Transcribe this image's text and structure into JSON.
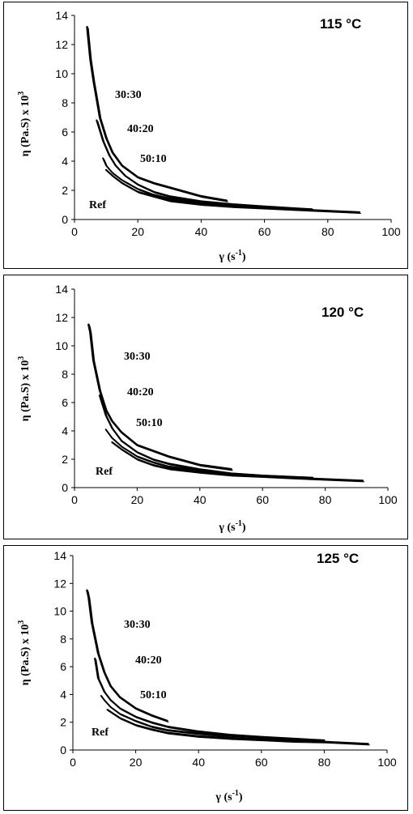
{
  "chart_data": [
    {
      "type": "line",
      "title": "115 °C",
      "xlabel": "γ (s-1)",
      "ylabel": "η (Pa.S) x 103",
      "xlim": [
        0,
        100
      ],
      "ylim": [
        0,
        14
      ],
      "xticks": [
        "0",
        "20",
        "40",
        "60",
        "80",
        "100"
      ],
      "yticks": [
        "0",
        "2",
        "4",
        "6",
        "8",
        "10",
        "12",
        "14"
      ],
      "annotations": [
        "30:30",
        "40:20",
        "50:10",
        "Ref"
      ],
      "series": [
        {
          "name": "30:30",
          "x": [
            4,
            5,
            6,
            8,
            10,
            12,
            15,
            20,
            25,
            30,
            40,
            48
          ],
          "y": [
            13.2,
            11.0,
            9.5,
            7.0,
            5.6,
            4.6,
            3.7,
            2.9,
            2.5,
            2.2,
            1.6,
            1.3
          ]
        },
        {
          "name": "40:20",
          "x": [
            7,
            9,
            11,
            13,
            16,
            20,
            25,
            30,
            40,
            50,
            60,
            75
          ],
          "y": [
            6.8,
            5.4,
            4.4,
            3.7,
            3.0,
            2.4,
            1.9,
            1.6,
            1.25,
            1.05,
            0.9,
            0.7
          ]
        },
        {
          "name": "50:10",
          "x": [
            9,
            10,
            12,
            15,
            20,
            25,
            30,
            40,
            50,
            60,
            75
          ],
          "y": [
            4.2,
            3.7,
            3.2,
            2.7,
            2.1,
            1.7,
            1.45,
            1.15,
            0.95,
            0.85,
            0.7
          ]
        },
        {
          "name": "Ref",
          "x": [
            10,
            12,
            15,
            20,
            25,
            30,
            40,
            50,
            60,
            70,
            80,
            90
          ],
          "y": [
            3.4,
            3.0,
            2.5,
            1.9,
            1.6,
            1.3,
            1.05,
            0.9,
            0.8,
            0.7,
            0.6,
            0.5
          ]
        }
      ]
    },
    {
      "type": "line",
      "title": "120 °C",
      "xlabel": "γ (s-1)",
      "ylabel": "η (Pa.S) x 103",
      "xlim": [
        0,
        100
      ],
      "ylim": [
        0,
        14
      ],
      "xticks": [
        "0",
        "20",
        "40",
        "60",
        "80",
        "100"
      ],
      "yticks": [
        "0",
        "2",
        "4",
        "6",
        "8",
        "10",
        "12",
        "14"
      ],
      "annotations": [
        "30:30",
        "40:20",
        "50:10",
        "Ref"
      ],
      "series": [
        {
          "name": "30:30",
          "x": [
            4.5,
            5,
            6,
            8,
            10,
            12,
            15,
            20,
            25,
            30,
            40,
            50
          ],
          "y": [
            11.5,
            11.0,
            9.0,
            6.9,
            5.5,
            4.7,
            3.9,
            3.0,
            2.6,
            2.2,
            1.6,
            1.3
          ]
        },
        {
          "name": "40:20",
          "x": [
            8,
            10,
            12,
            15,
            20,
            25,
            30,
            40,
            50,
            60,
            76
          ],
          "y": [
            6.5,
            5.1,
            4.2,
            3.3,
            2.5,
            2.0,
            1.7,
            1.3,
            1.0,
            0.85,
            0.7
          ]
        },
        {
          "name": "50:10",
          "x": [
            10,
            12,
            15,
            20,
            25,
            30,
            40,
            50,
            60,
            70,
            76
          ],
          "y": [
            4.1,
            3.5,
            2.9,
            2.2,
            1.8,
            1.5,
            1.2,
            1.0,
            0.85,
            0.75,
            0.7
          ]
        },
        {
          "name": "Ref",
          "x": [
            12,
            15,
            20,
            25,
            30,
            40,
            50,
            60,
            70,
            80,
            92
          ],
          "y": [
            3.2,
            2.7,
            2.0,
            1.6,
            1.35,
            1.1,
            0.9,
            0.8,
            0.7,
            0.6,
            0.5
          ]
        }
      ]
    },
    {
      "type": "line",
      "title": "125 °C",
      "xlabel": "γ (s-1)",
      "ylabel": "η (Pa.S) x 103",
      "xlim": [
        0,
        100
      ],
      "ylim": [
        0,
        14
      ],
      "xticks": [
        "0",
        "20",
        "40",
        "60",
        "80",
        "100"
      ],
      "yticks": [
        "0",
        "2",
        "4",
        "6",
        "8",
        "10",
        "12",
        "14"
      ],
      "annotations": [
        "30:30",
        "40:20",
        "50:10",
        "Ref"
      ],
      "series": [
        {
          "name": "30:30",
          "x": [
            4.5,
            5,
            6,
            8,
            10,
            12,
            15,
            20,
            25,
            30
          ],
          "y": [
            11.5,
            11.0,
            9.2,
            7.0,
            5.6,
            4.6,
            3.8,
            3.0,
            2.5,
            2.1
          ]
        },
        {
          "name": "40:20",
          "x": [
            7,
            8,
            10,
            12,
            15,
            20,
            25,
            30,
            40,
            50,
            60,
            80
          ],
          "y": [
            6.6,
            5.2,
            4.2,
            3.6,
            3.0,
            2.4,
            2.0,
            1.7,
            1.35,
            1.1,
            0.95,
            0.7
          ]
        },
        {
          "name": "50:10",
          "x": [
            9,
            10,
            12,
            15,
            20,
            25,
            30,
            40,
            50,
            60,
            80
          ],
          "y": [
            3.9,
            3.6,
            3.1,
            2.6,
            2.1,
            1.7,
            1.45,
            1.2,
            1.0,
            0.9,
            0.65
          ]
        },
        {
          "name": "Ref",
          "x": [
            11,
            13,
            15,
            20,
            25,
            30,
            40,
            50,
            60,
            70,
            80,
            94
          ],
          "y": [
            2.9,
            2.6,
            2.3,
            1.8,
            1.5,
            1.25,
            1.0,
            0.85,
            0.75,
            0.65,
            0.6,
            0.45
          ]
        }
      ]
    }
  ]
}
